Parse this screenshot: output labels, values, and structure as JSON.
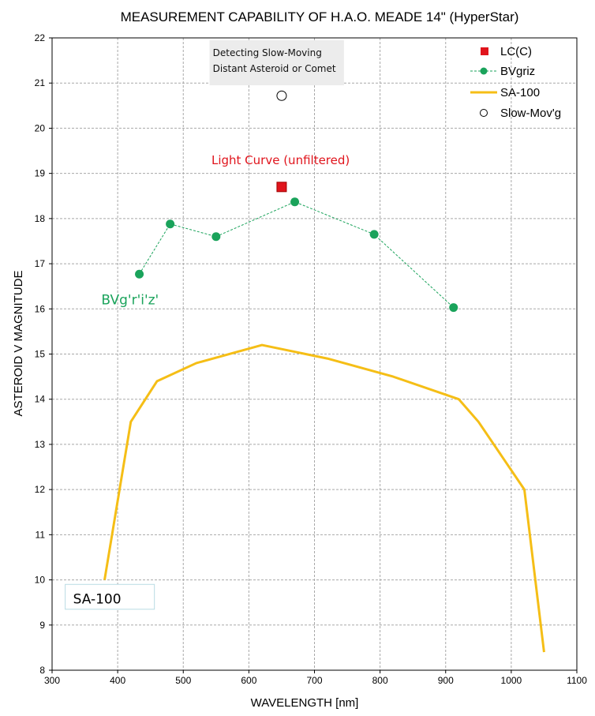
{
  "colors": {
    "lc": "#e0141c",
    "bvgriz": "#1aa35b",
    "sa100": "#f5be16",
    "slow": "#ffffff",
    "grid": "#a8a8a8",
    "anno_box": "#ececec",
    "anno_sa_border": "#b9dce4"
  },
  "chart_data": {
    "type": "scatter",
    "title": "MEASUREMENT CAPABILITY OF H.A.O. MEADE 14\" (HyperStar)",
    "xlabel": "WAVELENGTH [nm]",
    "ylabel": "ASTEROID  V MAGNITUDE",
    "xlim": [
      300,
      1100
    ],
    "ylim": [
      8,
      22
    ],
    "x_ticks": [
      "300",
      "400",
      "500",
      "600",
      "700",
      "800",
      "900",
      "1000",
      "1100"
    ],
    "y_ticks": [
      "8",
      "9",
      "10",
      "11",
      "12",
      "13",
      "14",
      "15",
      "16",
      "17",
      "18",
      "19",
      "20",
      "21",
      "22"
    ],
    "grid": true,
    "legend_position": "top-right",
    "series": [
      {
        "name": "LC(C)",
        "marker": "square",
        "points": [
          {
            "x": 650,
            "y": 18.7
          }
        ]
      },
      {
        "name": "BVgriz",
        "marker": "circle-dashed-line",
        "points": [
          {
            "x": 433,
            "y": 16.77
          },
          {
            "x": 480,
            "y": 17.88
          },
          {
            "x": 550,
            "y": 17.6
          },
          {
            "x": 670,
            "y": 18.37
          },
          {
            "x": 791,
            "y": 17.65
          },
          {
            "x": 912,
            "y": 16.03
          }
        ]
      },
      {
        "name": "SA-100",
        "marker": "line",
        "points": [
          {
            "x": 380,
            "y": 10.0
          },
          {
            "x": 420,
            "y": 13.5
          },
          {
            "x": 460,
            "y": 14.4
          },
          {
            "x": 520,
            "y": 14.8
          },
          {
            "x": 620,
            "y": 15.2
          },
          {
            "x": 720,
            "y": 14.9
          },
          {
            "x": 820,
            "y": 14.5
          },
          {
            "x": 920,
            "y": 14.0
          },
          {
            "x": 950,
            "y": 13.5
          },
          {
            "x": 1020,
            "y": 12.0
          },
          {
            "x": 1050,
            "y": 8.4
          }
        ]
      },
      {
        "name": "Slow-Mov'g",
        "marker": "open-circle",
        "points": [
          {
            "x": 650,
            "y": 20.72
          }
        ]
      }
    ],
    "annotations": {
      "slow_moving": [
        "Detecting Slow-Moving",
        "Distant Asteroid or Comet"
      ],
      "light_curve": "Light Curve (unfiltered)",
      "bvgriz_label": "BVg'r'i'z'",
      "sa100_label": "SA-100"
    }
  }
}
